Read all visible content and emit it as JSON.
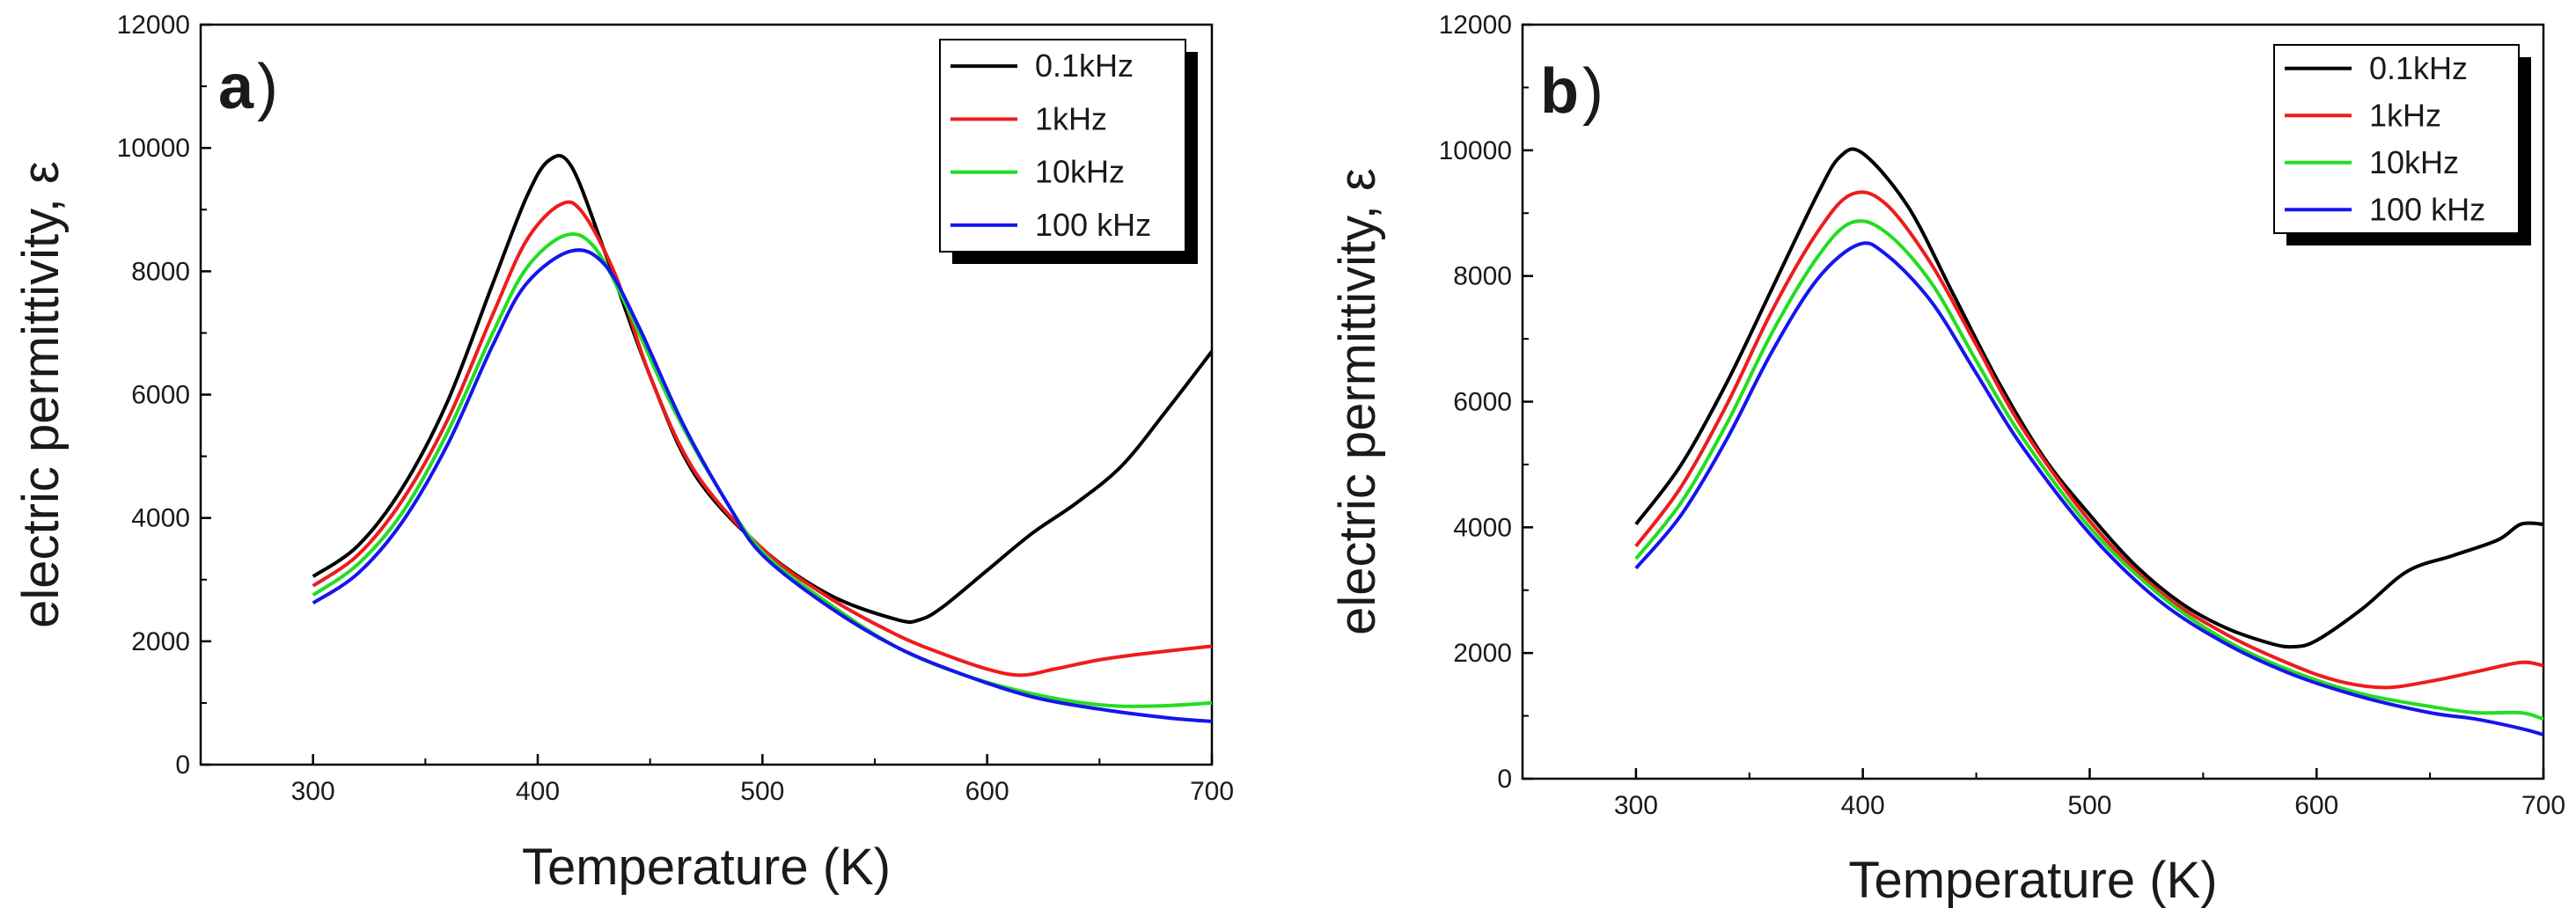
{
  "chart_data": [
    {
      "type": "line",
      "panel_label": "a",
      "xlabel": "Temperature (K)",
      "ylabel": "electric permittivity, ε",
      "xlim": [
        250,
        700
      ],
      "ylim": [
        0,
        12000
      ],
      "xticks": [
        300,
        400,
        500,
        600,
        700
      ],
      "yticks": [
        0,
        2000,
        4000,
        6000,
        8000,
        10000,
        12000
      ],
      "legend_position": "top-right",
      "series": [
        {
          "name": "0.1kHz",
          "color": "#000000",
          "x": [
            300,
            320,
            340,
            360,
            380,
            395,
            405,
            415,
            430,
            450,
            470,
            500,
            530,
            560,
            570,
            580,
            600,
            620,
            640,
            660,
            680,
            700
          ],
          "y": [
            3050,
            3550,
            4500,
            5900,
            7800,
            9200,
            9800,
            9700,
            8300,
            6300,
            4700,
            3500,
            2750,
            2350,
            2350,
            2550,
            3150,
            3750,
            4250,
            4850,
            5750,
            6700
          ]
        },
        {
          "name": "1kHz",
          "color": "#ee1c1c",
          "x": [
            300,
            320,
            340,
            360,
            380,
            395,
            410,
            420,
            435,
            450,
            470,
            500,
            530,
            560,
            580,
            600,
            615,
            630,
            650,
            670,
            700
          ],
          "y": [
            2900,
            3400,
            4300,
            5600,
            7300,
            8500,
            9080,
            8950,
            7900,
            6300,
            4750,
            3500,
            2700,
            2100,
            1800,
            1550,
            1450,
            1550,
            1700,
            1800,
            1920
          ]
        },
        {
          "name": "10kHz",
          "color": "#22dd22",
          "x": [
            300,
            320,
            340,
            360,
            380,
            395,
            412,
            425,
            440,
            460,
            480,
            500,
            530,
            560,
            590,
            620,
            650,
            675,
            700
          ],
          "y": [
            2750,
            3250,
            4100,
            5400,
            7000,
            8050,
            8580,
            8400,
            7400,
            5800,
            4500,
            3450,
            2600,
            1900,
            1450,
            1150,
            970,
            950,
            1000
          ]
        },
        {
          "name": "100 kHz",
          "color": "#1515ee",
          "x": [
            300,
            320,
            340,
            360,
            380,
            395,
            415,
            430,
            445,
            465,
            485,
            500,
            530,
            560,
            590,
            620,
            650,
            680,
            700
          ],
          "y": [
            2620,
            3100,
            3950,
            5200,
            6800,
            7800,
            8330,
            8100,
            7100,
            5500,
            4200,
            3400,
            2550,
            1900,
            1450,
            1100,
            900,
            760,
            700
          ]
        }
      ]
    },
    {
      "type": "line",
      "panel_label": "b",
      "xlabel": "Temperature (K)",
      "ylabel": "electric permittivity, ε",
      "xlim": [
        250,
        700
      ],
      "ylim": [
        0,
        12000
      ],
      "xticks": [
        300,
        400,
        500,
        600,
        700
      ],
      "yticks": [
        0,
        2000,
        4000,
        6000,
        8000,
        10000,
        12000
      ],
      "legend_position": "top-right",
      "series": [
        {
          "name": "0.1kHz",
          "color": "#000000",
          "x": [
            300,
            320,
            340,
            360,
            380,
            390,
            400,
            420,
            440,
            460,
            480,
            500,
            520,
            540,
            560,
            580,
            590,
            600,
            620,
            640,
            660,
            680,
            690,
            700
          ],
          "y": [
            4050,
            5000,
            6300,
            7800,
            9300,
            9900,
            9950,
            9100,
            7700,
            6300,
            5100,
            4200,
            3400,
            2800,
            2400,
            2150,
            2100,
            2200,
            2700,
            3300,
            3550,
            3800,
            4050,
            4050
          ]
        },
        {
          "name": "1kHz",
          "color": "#ee1c1c",
          "x": [
            300,
            320,
            340,
            360,
            380,
            395,
            410,
            430,
            450,
            470,
            500,
            530,
            560,
            590,
            610,
            630,
            650,
            670,
            690,
            700
          ],
          "y": [
            3700,
            4650,
            5950,
            7450,
            8700,
            9300,
            9150,
            8200,
            6900,
            5600,
            4100,
            3000,
            2300,
            1800,
            1550,
            1450,
            1550,
            1700,
            1850,
            1800
          ]
        },
        {
          "name": "10kHz",
          "color": "#22dd22",
          "x": [
            300,
            320,
            340,
            360,
            380,
            395,
            410,
            430,
            450,
            470,
            500,
            530,
            560,
            590,
            620,
            650,
            670,
            690,
            700
          ],
          "y": [
            3500,
            4400,
            5650,
            7100,
            8300,
            8850,
            8700,
            7900,
            6650,
            5450,
            4000,
            2950,
            2200,
            1700,
            1350,
            1150,
            1050,
            1050,
            950
          ]
        },
        {
          "name": "100 kHz",
          "color": "#1515ee",
          "x": [
            300,
            320,
            340,
            360,
            380,
            398,
            410,
            430,
            450,
            470,
            500,
            530,
            560,
            590,
            620,
            650,
            670,
            690,
            700
          ],
          "y": [
            3350,
            4200,
            5400,
            6800,
            7950,
            8500,
            8350,
            7600,
            6450,
            5300,
            3900,
            2850,
            2150,
            1650,
            1300,
            1050,
            950,
            800,
            700
          ]
        }
      ]
    }
  ]
}
